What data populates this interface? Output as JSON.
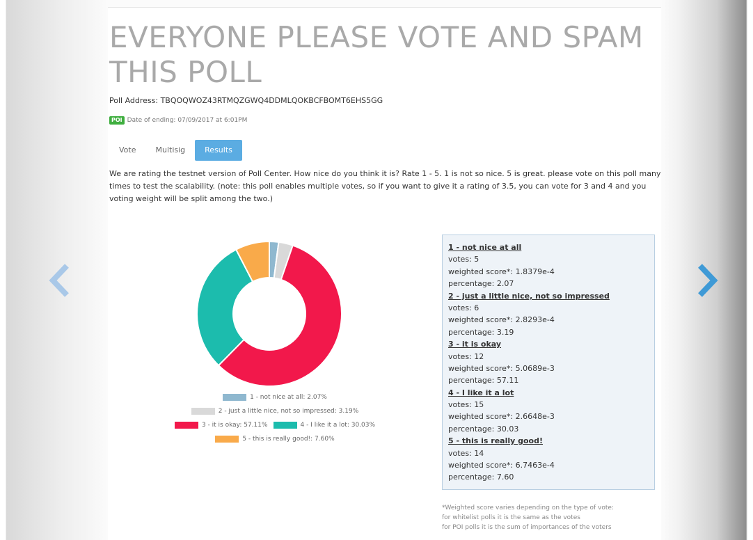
{
  "poll": {
    "title": "EVERYONE PLEASE VOTE AND SPAM THIS POLL",
    "address": "Poll Address: TBQOQWOZ43RTMQZGWQ4DDMLQOKBCFBOMT6EHS5GG",
    "badge": "POI",
    "ending": "Date of ending: 07/09/2017 at 6:01PM",
    "description": "We are rating the testnet version of Poll Center. How nice do you think it is? Rate 1 - 5. 1 is not so nice. 5 is great. please vote on this poll many times to test the scalability. (note: this poll enables multiple votes, so if you want to give it a rating of 3.5, you can vote for 3 and 4 and you voting weight will be split among the two.)"
  },
  "tabs": [
    {
      "label": "Vote"
    },
    {
      "label": "Multisig"
    },
    {
      "label": "Results"
    }
  ],
  "icons": {
    "prev": "chevron-left-icon",
    "next": "chevron-right-icon",
    "arrow_color": "#a9c8e8"
  },
  "chart_data": {
    "type": "pie",
    "donut": true,
    "categories": [
      "1 - not nice at all",
      "2 - just a little nice, not so impressed",
      "3 - it is okay",
      "4 - I like it a lot",
      "5 - this is really good!"
    ],
    "values": [
      2.07,
      3.19,
      57.11,
      30.03,
      7.6
    ],
    "colors": [
      "#8fb8cf",
      "#d9d9d9",
      "#f2184b",
      "#1cbcad",
      "#f9aa4a"
    ],
    "legend": [
      "1 - not nice at all: 2.07%",
      "2 - just a little nice, not so impressed: 3.19%",
      "3 - it is okay: 57.11%",
      "4 - I like it a lot: 30.03%",
      "5 - this is really good!: 7.60%"
    ],
    "legend_position": "bottom"
  },
  "results": [
    {
      "title": "1 - not nice at all",
      "votes": "votes: 5",
      "weighted": "weighted score*: 1.8379e-4",
      "percentage": "percentage: 2.07"
    },
    {
      "title": "2 - just a little nice, not so impressed",
      "votes": "votes: 6",
      "weighted": "weighted score*: 2.8293e-4",
      "percentage": "percentage: 3.19"
    },
    {
      "title": "3 - it is okay",
      "votes": "votes: 12",
      "weighted": "weighted score*: 5.0689e-3",
      "percentage": "percentage: 57.11"
    },
    {
      "title": "4 - I like it a lot",
      "votes": "votes: 15",
      "weighted": "weighted score*: 2.6648e-3",
      "percentage": "percentage: 30.03"
    },
    {
      "title": "5 - this is really good!",
      "votes": "votes: 14",
      "weighted": "weighted score*: 6.7463e-4",
      "percentage": "percentage: 7.60"
    }
  ],
  "footnote": [
    "*Weighted score varies depending on the type of vote:",
    "for whitelist polls it is the same as the votes",
    "for POI polls it is the sum of importances of the voters"
  ]
}
